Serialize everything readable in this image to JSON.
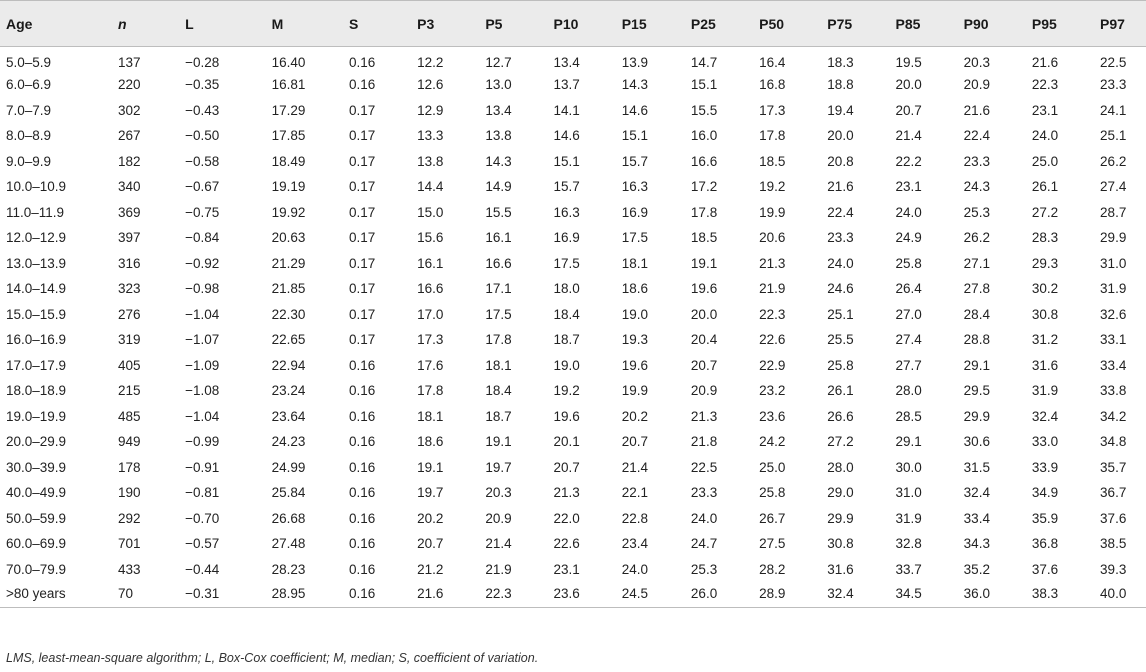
{
  "table": {
    "columns": [
      "Age",
      "n",
      "L",
      "M",
      "S",
      "P3",
      "P5",
      "P10",
      "P15",
      "P25",
      "P50",
      "P75",
      "P85",
      "P90",
      "P95",
      "P97"
    ],
    "rows": [
      [
        "5.0–5.9",
        "137",
        "−0.28",
        "16.40",
        "0.16",
        "12.2",
        "12.7",
        "13.4",
        "13.9",
        "14.7",
        "16.4",
        "18.3",
        "19.5",
        "20.3",
        "21.6",
        "22.5"
      ],
      [
        "6.0–6.9",
        "220",
        "−0.35",
        "16.81",
        "0.16",
        "12.6",
        "13.0",
        "13.7",
        "14.3",
        "15.1",
        "16.8",
        "18.8",
        "20.0",
        "20.9",
        "22.3",
        "23.3"
      ],
      [
        "7.0–7.9",
        "302",
        "−0.43",
        "17.29",
        "0.17",
        "12.9",
        "13.4",
        "14.1",
        "14.6",
        "15.5",
        "17.3",
        "19.4",
        "20.7",
        "21.6",
        "23.1",
        "24.1"
      ],
      [
        "8.0–8.9",
        "267",
        "−0.50",
        "17.85",
        "0.17",
        "13.3",
        "13.8",
        "14.6",
        "15.1",
        "16.0",
        "17.8",
        "20.0",
        "21.4",
        "22.4",
        "24.0",
        "25.1"
      ],
      [
        "9.0–9.9",
        "182",
        "−0.58",
        "18.49",
        "0.17",
        "13.8",
        "14.3",
        "15.1",
        "15.7",
        "16.6",
        "18.5",
        "20.8",
        "22.2",
        "23.3",
        "25.0",
        "26.2"
      ],
      [
        "10.0–10.9",
        "340",
        "−0.67",
        "19.19",
        "0.17",
        "14.4",
        "14.9",
        "15.7",
        "16.3",
        "17.2",
        "19.2",
        "21.6",
        "23.1",
        "24.3",
        "26.1",
        "27.4"
      ],
      [
        "11.0–11.9",
        "369",
        "−0.75",
        "19.92",
        "0.17",
        "15.0",
        "15.5",
        "16.3",
        "16.9",
        "17.8",
        "19.9",
        "22.4",
        "24.0",
        "25.3",
        "27.2",
        "28.7"
      ],
      [
        "12.0–12.9",
        "397",
        "−0.84",
        "20.63",
        "0.17",
        "15.6",
        "16.1",
        "16.9",
        "17.5",
        "18.5",
        "20.6",
        "23.3",
        "24.9",
        "26.2",
        "28.3",
        "29.9"
      ],
      [
        "13.0–13.9",
        "316",
        "−0.92",
        "21.29",
        "0.17",
        "16.1",
        "16.6",
        "17.5",
        "18.1",
        "19.1",
        "21.3",
        "24.0",
        "25.8",
        "27.1",
        "29.3",
        "31.0"
      ],
      [
        "14.0–14.9",
        "323",
        "−0.98",
        "21.85",
        "0.17",
        "16.6",
        "17.1",
        "18.0",
        "18.6",
        "19.6",
        "21.9",
        "24.6",
        "26.4",
        "27.8",
        "30.2",
        "31.9"
      ],
      [
        "15.0–15.9",
        "276",
        "−1.04",
        "22.30",
        "0.17",
        "17.0",
        "17.5",
        "18.4",
        "19.0",
        "20.0",
        "22.3",
        "25.1",
        "27.0",
        "28.4",
        "30.8",
        "32.6"
      ],
      [
        "16.0–16.9",
        "319",
        "−1.07",
        "22.65",
        "0.17",
        "17.3",
        "17.8",
        "18.7",
        "19.3",
        "20.4",
        "22.6",
        "25.5",
        "27.4",
        "28.8",
        "31.2",
        "33.1"
      ],
      [
        "17.0–17.9",
        "405",
        "−1.09",
        "22.94",
        "0.16",
        "17.6",
        "18.1",
        "19.0",
        "19.6",
        "20.7",
        "22.9",
        "25.8",
        "27.7",
        "29.1",
        "31.6",
        "33.4"
      ],
      [
        "18.0–18.9",
        "215",
        "−1.08",
        "23.24",
        "0.16",
        "17.8",
        "18.4",
        "19.2",
        "19.9",
        "20.9",
        "23.2",
        "26.1",
        "28.0",
        "29.5",
        "31.9",
        "33.8"
      ],
      [
        "19.0–19.9",
        "485",
        "−1.04",
        "23.64",
        "0.16",
        "18.1",
        "18.7",
        "19.6",
        "20.2",
        "21.3",
        "23.6",
        "26.6",
        "28.5",
        "29.9",
        "32.4",
        "34.2"
      ],
      [
        "20.0–29.9",
        "949",
        "−0.99",
        "24.23",
        "0.16",
        "18.6",
        "19.1",
        "20.1",
        "20.7",
        "21.8",
        "24.2",
        "27.2",
        "29.1",
        "30.6",
        "33.0",
        "34.8"
      ],
      [
        "30.0–39.9",
        "178",
        "−0.91",
        "24.99",
        "0.16",
        "19.1",
        "19.7",
        "20.7",
        "21.4",
        "22.5",
        "25.0",
        "28.0",
        "30.0",
        "31.5",
        "33.9",
        "35.7"
      ],
      [
        "40.0–49.9",
        "190",
        "−0.81",
        "25.84",
        "0.16",
        "19.7",
        "20.3",
        "21.3",
        "22.1",
        "23.3",
        "25.8",
        "29.0",
        "31.0",
        "32.4",
        "34.9",
        "36.7"
      ],
      [
        "50.0–59.9",
        "292",
        "−0.70",
        "26.68",
        "0.16",
        "20.2",
        "20.9",
        "22.0",
        "22.8",
        "24.0",
        "26.7",
        "29.9",
        "31.9",
        "33.4",
        "35.9",
        "37.6"
      ],
      [
        "60.0–69.9",
        "701",
        "−0.57",
        "27.48",
        "0.16",
        "20.7",
        "21.4",
        "22.6",
        "23.4",
        "24.7",
        "27.5",
        "30.8",
        "32.8",
        "34.3",
        "36.8",
        "38.5"
      ],
      [
        "70.0–79.9",
        "433",
        "−0.44",
        "28.23",
        "0.16",
        "21.2",
        "21.9",
        "23.1",
        "24.0",
        "25.3",
        "28.2",
        "31.6",
        "33.7",
        "35.2",
        "37.6",
        "39.3"
      ],
      [
        ">80 years",
        "70",
        "−0.31",
        "28.95",
        "0.16",
        "21.6",
        "22.3",
        "23.6",
        "24.5",
        "26.0",
        "28.9",
        "32.4",
        "34.5",
        "36.0",
        "38.3",
        "40.0"
      ]
    ]
  },
  "footnote": "LMS, least-mean-square algorithm; L, Box-Cox coefficient; M, median; S, coefficient of variation.",
  "colors": {
    "header_bg": "#ebebeb",
    "rule": "#bdbdbd",
    "text": "#222222"
  }
}
